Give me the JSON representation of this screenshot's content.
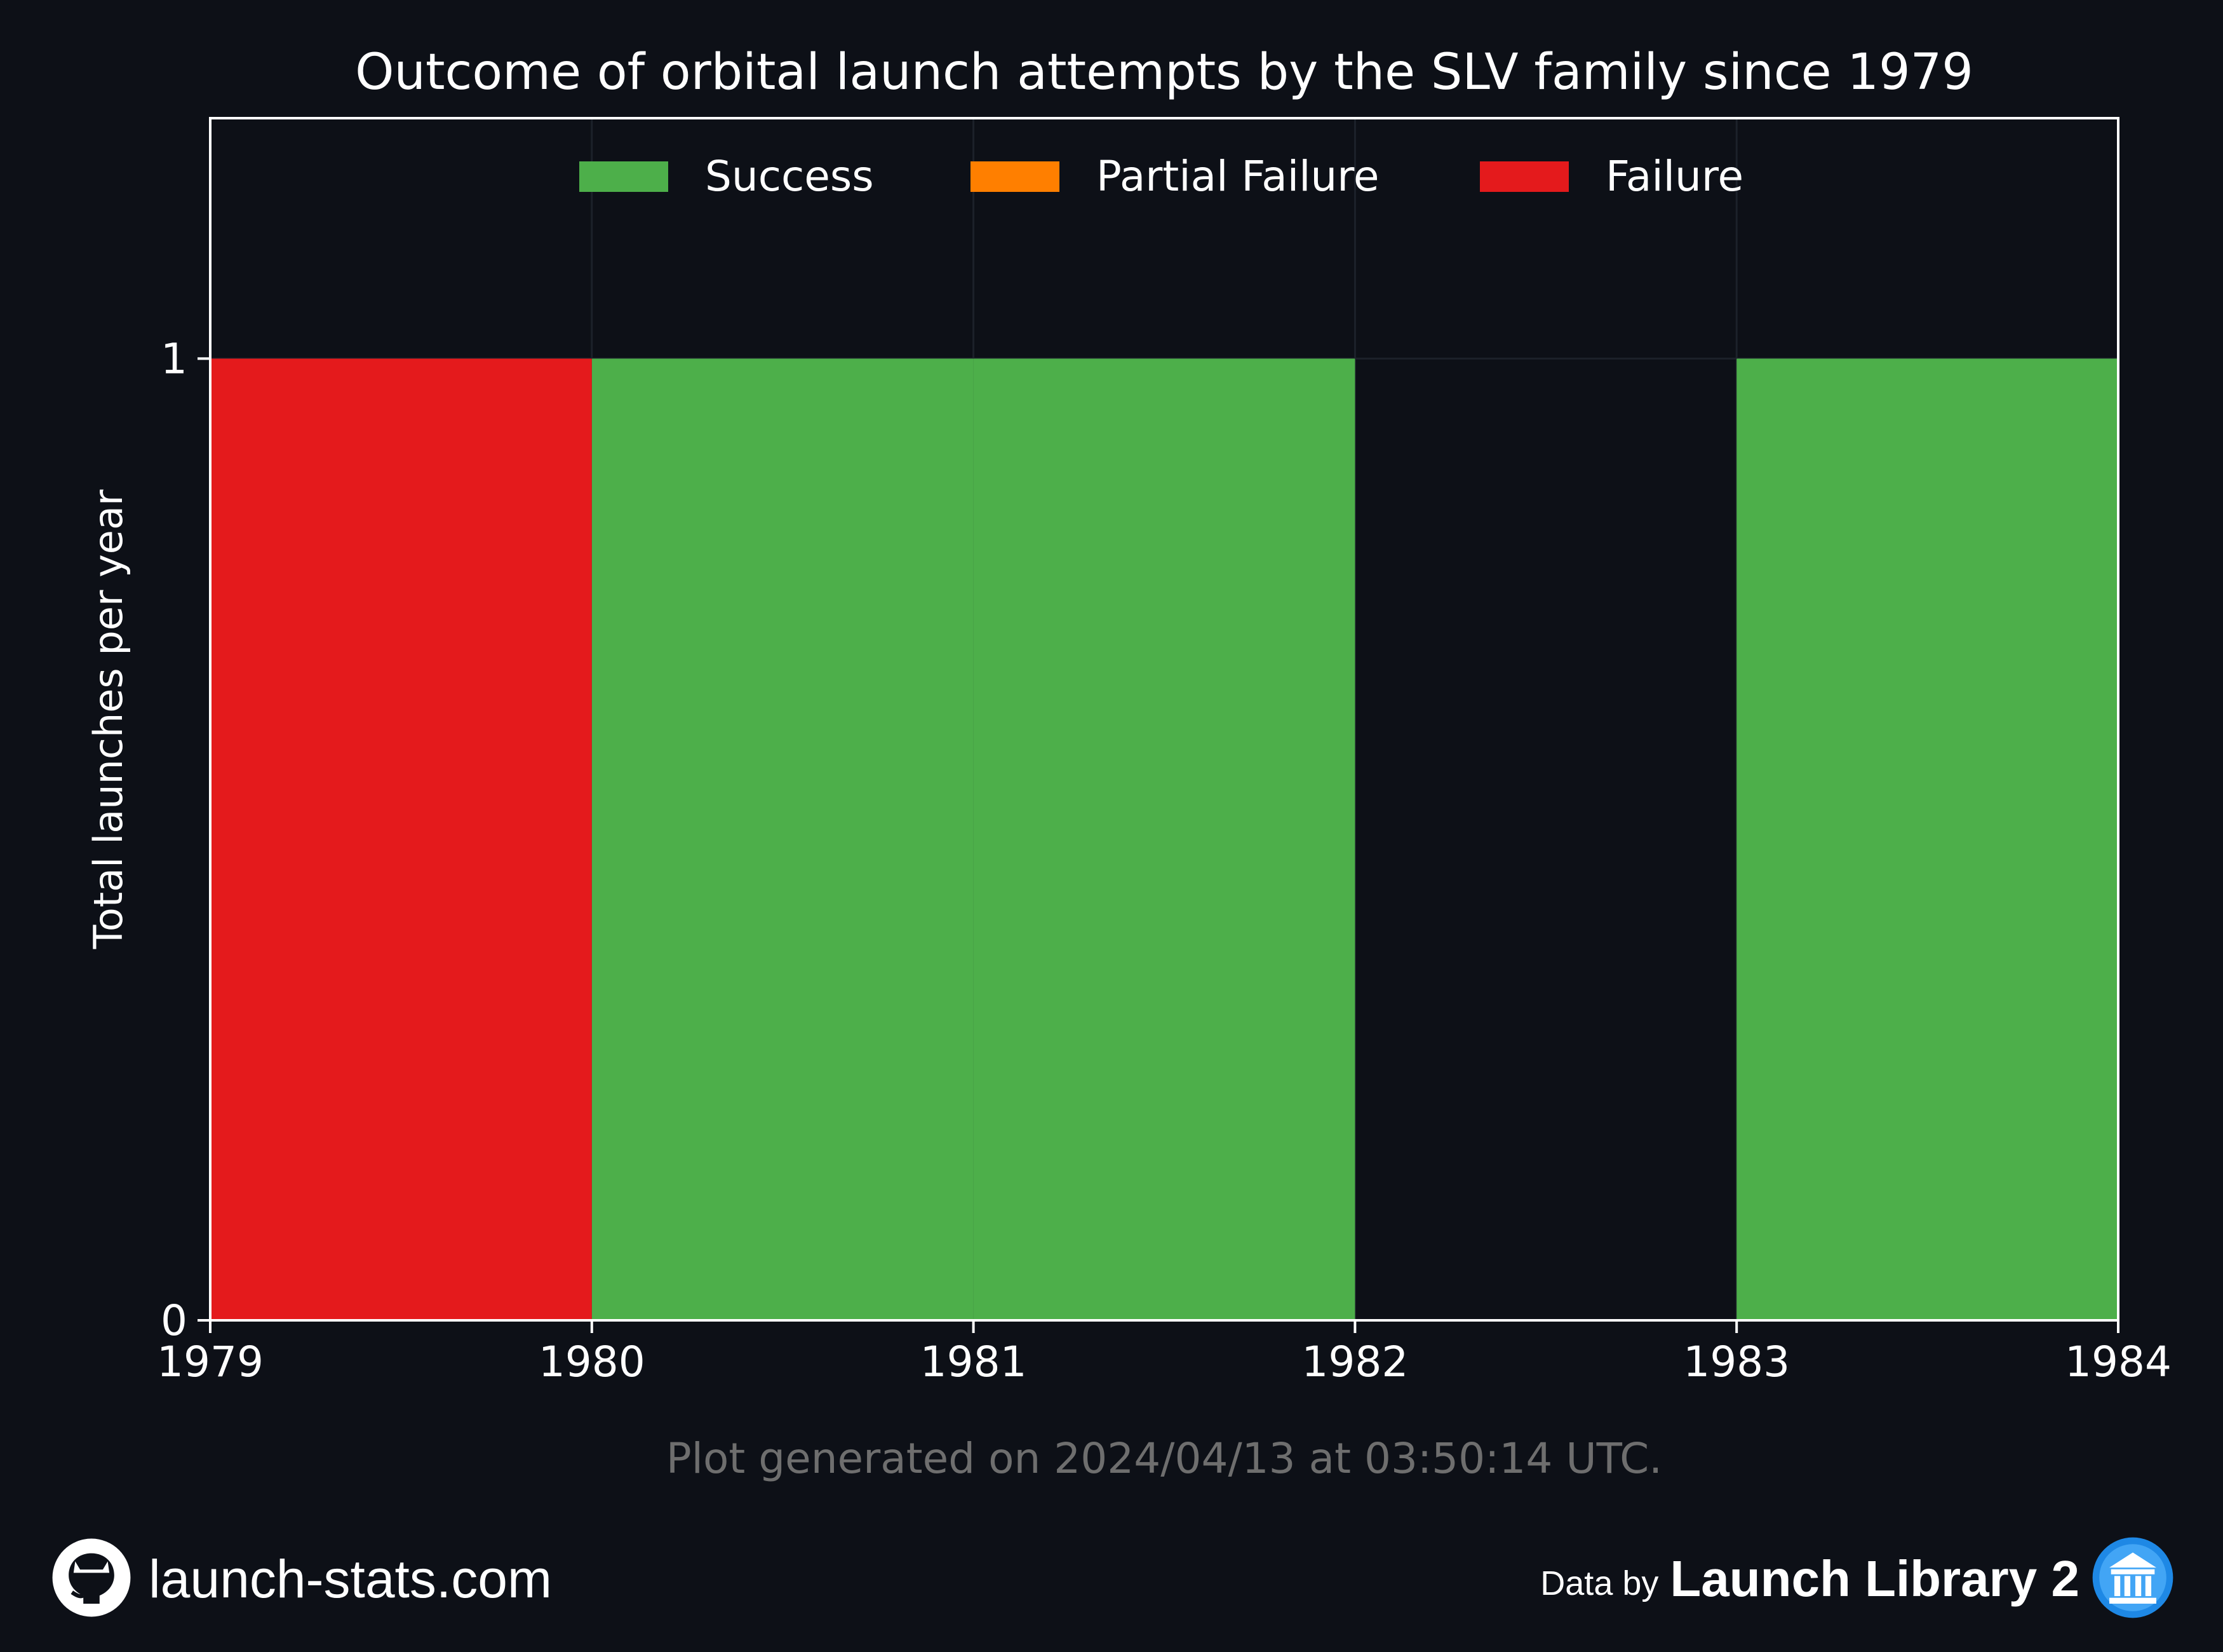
{
  "chart_data": {
    "type": "bar",
    "title": "Outcome of orbital launch attempts by the SLV family since 1979",
    "xlabel": "",
    "ylabel": "Total launches per year",
    "x_ticks": [
      "1979",
      "1980",
      "1981",
      "1982",
      "1983",
      "1984"
    ],
    "y_ticks": [
      "0",
      "1"
    ],
    "xlim": [
      1979,
      1984
    ],
    "ylim": [
      0,
      1.25
    ],
    "categories": [
      1979,
      1980,
      1981,
      1982,
      1983
    ],
    "series": [
      {
        "name": "Success",
        "color": "#4daf4a",
        "values": [
          0,
          1,
          1,
          0,
          1
        ]
      },
      {
        "name": "Partial Failure",
        "color": "#ff7f00",
        "values": [
          0,
          0,
          0,
          0,
          0
        ]
      },
      {
        "name": "Failure",
        "color": "#e41a1c",
        "values": [
          1,
          0,
          0,
          0,
          0
        ]
      }
    ],
    "legend_position": "top-center",
    "grid": true
  },
  "footer": {
    "generated": "Plot generated on 2024/04/13 at 03:50:14 UTC.",
    "site": "launch-stats.com",
    "data_by": "Data by",
    "brand": "Launch Library 2",
    "left_icon": "github-icon",
    "right_icon": "launch-library-logo-icon"
  }
}
